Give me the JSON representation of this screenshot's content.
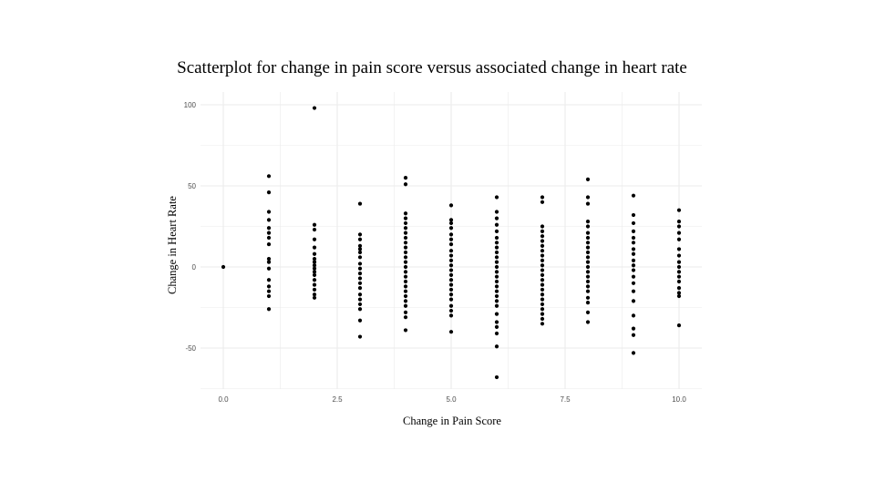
{
  "chart_data": {
    "type": "scatter",
    "title": "Scatterplot for change in pain score versus associated change in heart rate",
    "xlabel": "Change in Pain Score",
    "ylabel": "Change in Heart Rate",
    "xlim": [
      -0.5,
      10.5
    ],
    "ylim": [
      -75,
      102
    ],
    "x_ticks": [
      0,
      2.5,
      5,
      7.5,
      10
    ],
    "x_tick_labels": [
      "0.0",
      "2.5",
      "5.0",
      "7.5",
      "10.0"
    ],
    "y_ticks": [
      -50,
      0,
      50,
      100
    ],
    "y_tick_labels": [
      "-50",
      "0",
      "50",
      "100"
    ],
    "grid": true,
    "legend": "none",
    "point_color": "#000000",
    "grid_color": "#ebebeb",
    "series": [
      {
        "points": [
          {
            "x": 0,
            "y": 0
          },
          {
            "x": 1,
            "y": 56
          },
          {
            "x": 1,
            "y": 46
          },
          {
            "x": 1,
            "y": 34
          },
          {
            "x": 1,
            "y": 29
          },
          {
            "x": 1,
            "y": 24
          },
          {
            "x": 1,
            "y": 21
          },
          {
            "x": 1,
            "y": 18
          },
          {
            "x": 1,
            "y": 14
          },
          {
            "x": 1,
            "y": 5
          },
          {
            "x": 1,
            "y": 3
          },
          {
            "x": 1,
            "y": -1
          },
          {
            "x": 1,
            "y": -8
          },
          {
            "x": 1,
            "y": -12
          },
          {
            "x": 1,
            "y": -15
          },
          {
            "x": 1,
            "y": -18
          },
          {
            "x": 1,
            "y": -26
          },
          {
            "x": 2,
            "y": 98
          },
          {
            "x": 2,
            "y": 26
          },
          {
            "x": 2,
            "y": 23
          },
          {
            "x": 2,
            "y": 17
          },
          {
            "x": 2,
            "y": 12
          },
          {
            "x": 2,
            "y": 8
          },
          {
            "x": 2,
            "y": 5
          },
          {
            "x": 2,
            "y": 3
          },
          {
            "x": 2,
            "y": 1
          },
          {
            "x": 2,
            "y": -1
          },
          {
            "x": 2,
            "y": -3
          },
          {
            "x": 2,
            "y": -5
          },
          {
            "x": 2,
            "y": -8
          },
          {
            "x": 2,
            "y": -11
          },
          {
            "x": 2,
            "y": -14
          },
          {
            "x": 2,
            "y": -17
          },
          {
            "x": 2,
            "y": -19
          },
          {
            "x": 3,
            "y": 39
          },
          {
            "x": 3,
            "y": 20
          },
          {
            "x": 3,
            "y": 17
          },
          {
            "x": 3,
            "y": 13
          },
          {
            "x": 3,
            "y": 11
          },
          {
            "x": 3,
            "y": 9
          },
          {
            "x": 3,
            "y": 6
          },
          {
            "x": 3,
            "y": 2
          },
          {
            "x": 3,
            "y": -1
          },
          {
            "x": 3,
            "y": -4
          },
          {
            "x": 3,
            "y": -7
          },
          {
            "x": 3,
            "y": -10
          },
          {
            "x": 3,
            "y": -13
          },
          {
            "x": 3,
            "y": -17
          },
          {
            "x": 3,
            "y": -20
          },
          {
            "x": 3,
            "y": -23
          },
          {
            "x": 3,
            "y": -26
          },
          {
            "x": 3,
            "y": -33
          },
          {
            "x": 3,
            "y": -43
          },
          {
            "x": 4,
            "y": 55
          },
          {
            "x": 4,
            "y": 51
          },
          {
            "x": 4,
            "y": 33
          },
          {
            "x": 4,
            "y": 30
          },
          {
            "x": 4,
            "y": 27
          },
          {
            "x": 4,
            "y": 24
          },
          {
            "x": 4,
            "y": 21
          },
          {
            "x": 4,
            "y": 18
          },
          {
            "x": 4,
            "y": 15
          },
          {
            "x": 4,
            "y": 12
          },
          {
            "x": 4,
            "y": 9
          },
          {
            "x": 4,
            "y": 6
          },
          {
            "x": 4,
            "y": 3
          },
          {
            "x": 4,
            "y": 0
          },
          {
            "x": 4,
            "y": -3
          },
          {
            "x": 4,
            "y": -6
          },
          {
            "x": 4,
            "y": -9
          },
          {
            "x": 4,
            "y": -12
          },
          {
            "x": 4,
            "y": -15
          },
          {
            "x": 4,
            "y": -18
          },
          {
            "x": 4,
            "y": -21
          },
          {
            "x": 4,
            "y": -24
          },
          {
            "x": 4,
            "y": -28
          },
          {
            "x": 4,
            "y": -31
          },
          {
            "x": 4,
            "y": -39
          },
          {
            "x": 5,
            "y": 38
          },
          {
            "x": 5,
            "y": 29
          },
          {
            "x": 5,
            "y": 27
          },
          {
            "x": 5,
            "y": 24
          },
          {
            "x": 5,
            "y": 20
          },
          {
            "x": 5,
            "y": 17
          },
          {
            "x": 5,
            "y": 14
          },
          {
            "x": 5,
            "y": 10
          },
          {
            "x": 5,
            "y": 7
          },
          {
            "x": 5,
            "y": 4
          },
          {
            "x": 5,
            "y": 1
          },
          {
            "x": 5,
            "y": -2
          },
          {
            "x": 5,
            "y": -5
          },
          {
            "x": 5,
            "y": -8
          },
          {
            "x": 5,
            "y": -11
          },
          {
            "x": 5,
            "y": -14
          },
          {
            "x": 5,
            "y": -17
          },
          {
            "x": 5,
            "y": -20
          },
          {
            "x": 5,
            "y": -24
          },
          {
            "x": 5,
            "y": -27
          },
          {
            "x": 5,
            "y": -30
          },
          {
            "x": 5,
            "y": -40
          },
          {
            "x": 6,
            "y": 43
          },
          {
            "x": 6,
            "y": 34
          },
          {
            "x": 6,
            "y": 30
          },
          {
            "x": 6,
            "y": 26
          },
          {
            "x": 6,
            "y": 22
          },
          {
            "x": 6,
            "y": 18
          },
          {
            "x": 6,
            "y": 15
          },
          {
            "x": 6,
            "y": 12
          },
          {
            "x": 6,
            "y": 9
          },
          {
            "x": 6,
            "y": 6
          },
          {
            "x": 6,
            "y": 3
          },
          {
            "x": 6,
            "y": 0
          },
          {
            "x": 6,
            "y": -3
          },
          {
            "x": 6,
            "y": -6
          },
          {
            "x": 6,
            "y": -9
          },
          {
            "x": 6,
            "y": -12
          },
          {
            "x": 6,
            "y": -15
          },
          {
            "x": 6,
            "y": -18
          },
          {
            "x": 6,
            "y": -21
          },
          {
            "x": 6,
            "y": -24
          },
          {
            "x": 6,
            "y": -29
          },
          {
            "x": 6,
            "y": -34
          },
          {
            "x": 6,
            "y": -37
          },
          {
            "x": 6,
            "y": -41
          },
          {
            "x": 6,
            "y": -49
          },
          {
            "x": 6,
            "y": -68
          },
          {
            "x": 7,
            "y": 43
          },
          {
            "x": 7,
            "y": 40
          },
          {
            "x": 7,
            "y": 25
          },
          {
            "x": 7,
            "y": 22
          },
          {
            "x": 7,
            "y": 19
          },
          {
            "x": 7,
            "y": 16
          },
          {
            "x": 7,
            "y": 13
          },
          {
            "x": 7,
            "y": 10
          },
          {
            "x": 7,
            "y": 7
          },
          {
            "x": 7,
            "y": 4
          },
          {
            "x": 7,
            "y": 1
          },
          {
            "x": 7,
            "y": -2
          },
          {
            "x": 7,
            "y": -5
          },
          {
            "x": 7,
            "y": -8
          },
          {
            "x": 7,
            "y": -11
          },
          {
            "x": 7,
            "y": -14
          },
          {
            "x": 7,
            "y": -17
          },
          {
            "x": 7,
            "y": -20
          },
          {
            "x": 7,
            "y": -23
          },
          {
            "x": 7,
            "y": -26
          },
          {
            "x": 7,
            "y": -29
          },
          {
            "x": 7,
            "y": -32
          },
          {
            "x": 7,
            "y": -35
          },
          {
            "x": 8,
            "y": 54
          },
          {
            "x": 8,
            "y": 43
          },
          {
            "x": 8,
            "y": 39
          },
          {
            "x": 8,
            "y": 28
          },
          {
            "x": 8,
            "y": 25
          },
          {
            "x": 8,
            "y": 21
          },
          {
            "x": 8,
            "y": 18
          },
          {
            "x": 8,
            "y": 15
          },
          {
            "x": 8,
            "y": 12
          },
          {
            "x": 8,
            "y": 9
          },
          {
            "x": 8,
            "y": 6
          },
          {
            "x": 8,
            "y": 3
          },
          {
            "x": 8,
            "y": 0
          },
          {
            "x": 8,
            "y": -3
          },
          {
            "x": 8,
            "y": -6
          },
          {
            "x": 8,
            "y": -9
          },
          {
            "x": 8,
            "y": -12
          },
          {
            "x": 8,
            "y": -15
          },
          {
            "x": 8,
            "y": -19
          },
          {
            "x": 8,
            "y": -22
          },
          {
            "x": 8,
            "y": -28
          },
          {
            "x": 8,
            "y": -34
          },
          {
            "x": 9,
            "y": 44
          },
          {
            "x": 9,
            "y": 32
          },
          {
            "x": 9,
            "y": 27
          },
          {
            "x": 9,
            "y": 22
          },
          {
            "x": 9,
            "y": 18
          },
          {
            "x": 9,
            "y": 15
          },
          {
            "x": 9,
            "y": 11
          },
          {
            "x": 9,
            "y": 8
          },
          {
            "x": 9,
            "y": 4
          },
          {
            "x": 9,
            "y": 1
          },
          {
            "x": 9,
            "y": -2
          },
          {
            "x": 9,
            "y": -6
          },
          {
            "x": 9,
            "y": -10
          },
          {
            "x": 9,
            "y": -15
          },
          {
            "x": 9,
            "y": -21
          },
          {
            "x": 9,
            "y": -30
          },
          {
            "x": 9,
            "y": -38
          },
          {
            "x": 9,
            "y": -42
          },
          {
            "x": 9,
            "y": -53
          },
          {
            "x": 10,
            "y": 35
          },
          {
            "x": 10,
            "y": 28
          },
          {
            "x": 10,
            "y": 25
          },
          {
            "x": 10,
            "y": 21
          },
          {
            "x": 10,
            "y": 17
          },
          {
            "x": 10,
            "y": 11
          },
          {
            "x": 10,
            "y": 7
          },
          {
            "x": 10,
            "y": 3
          },
          {
            "x": 10,
            "y": 0
          },
          {
            "x": 10,
            "y": -3
          },
          {
            "x": 10,
            "y": -6
          },
          {
            "x": 10,
            "y": -9
          },
          {
            "x": 10,
            "y": -13
          },
          {
            "x": 10,
            "y": -16
          },
          {
            "x": 10,
            "y": -18
          },
          {
            "x": 10,
            "y": -36
          }
        ]
      }
    ]
  }
}
